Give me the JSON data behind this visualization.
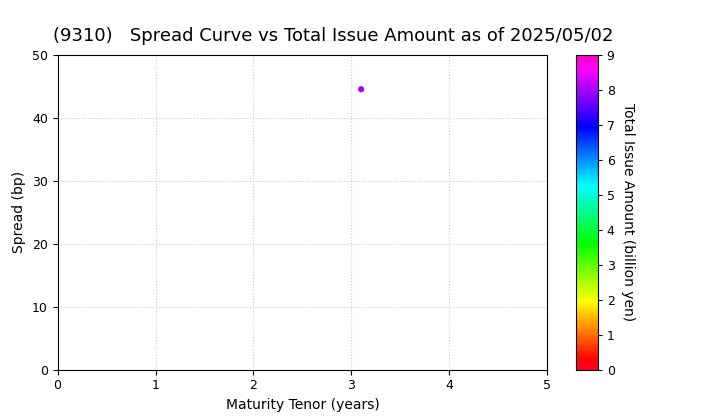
{
  "title": "(9310)   Spread Curve vs Total Issue Amount as of 2025/05/02",
  "xlabel": "Maturity Tenor (years)",
  "ylabel": "Spread (bp)",
  "colorbar_label": "Total Issue Amount (billion yen)",
  "xlim": [
    0,
    5
  ],
  "ylim": [
    0,
    50
  ],
  "xticks": [
    0,
    1,
    2,
    3,
    4,
    5
  ],
  "yticks": [
    0,
    10,
    20,
    30,
    40,
    50
  ],
  "colorbar_min": 0,
  "colorbar_max": 9,
  "colorbar_ticks": [
    0,
    1,
    2,
    3,
    4,
    5,
    6,
    7,
    8,
    9
  ],
  "scatter_x": [
    3.1
  ],
  "scatter_y": [
    44.5
  ],
  "scatter_values": [
    8.0
  ],
  "grid_color": "#cccccc",
  "background_color": "#ffffff",
  "title_fontsize": 13,
  "axis_fontsize": 10,
  "colorbar_fontsize": 10,
  "scatter_size": 20
}
